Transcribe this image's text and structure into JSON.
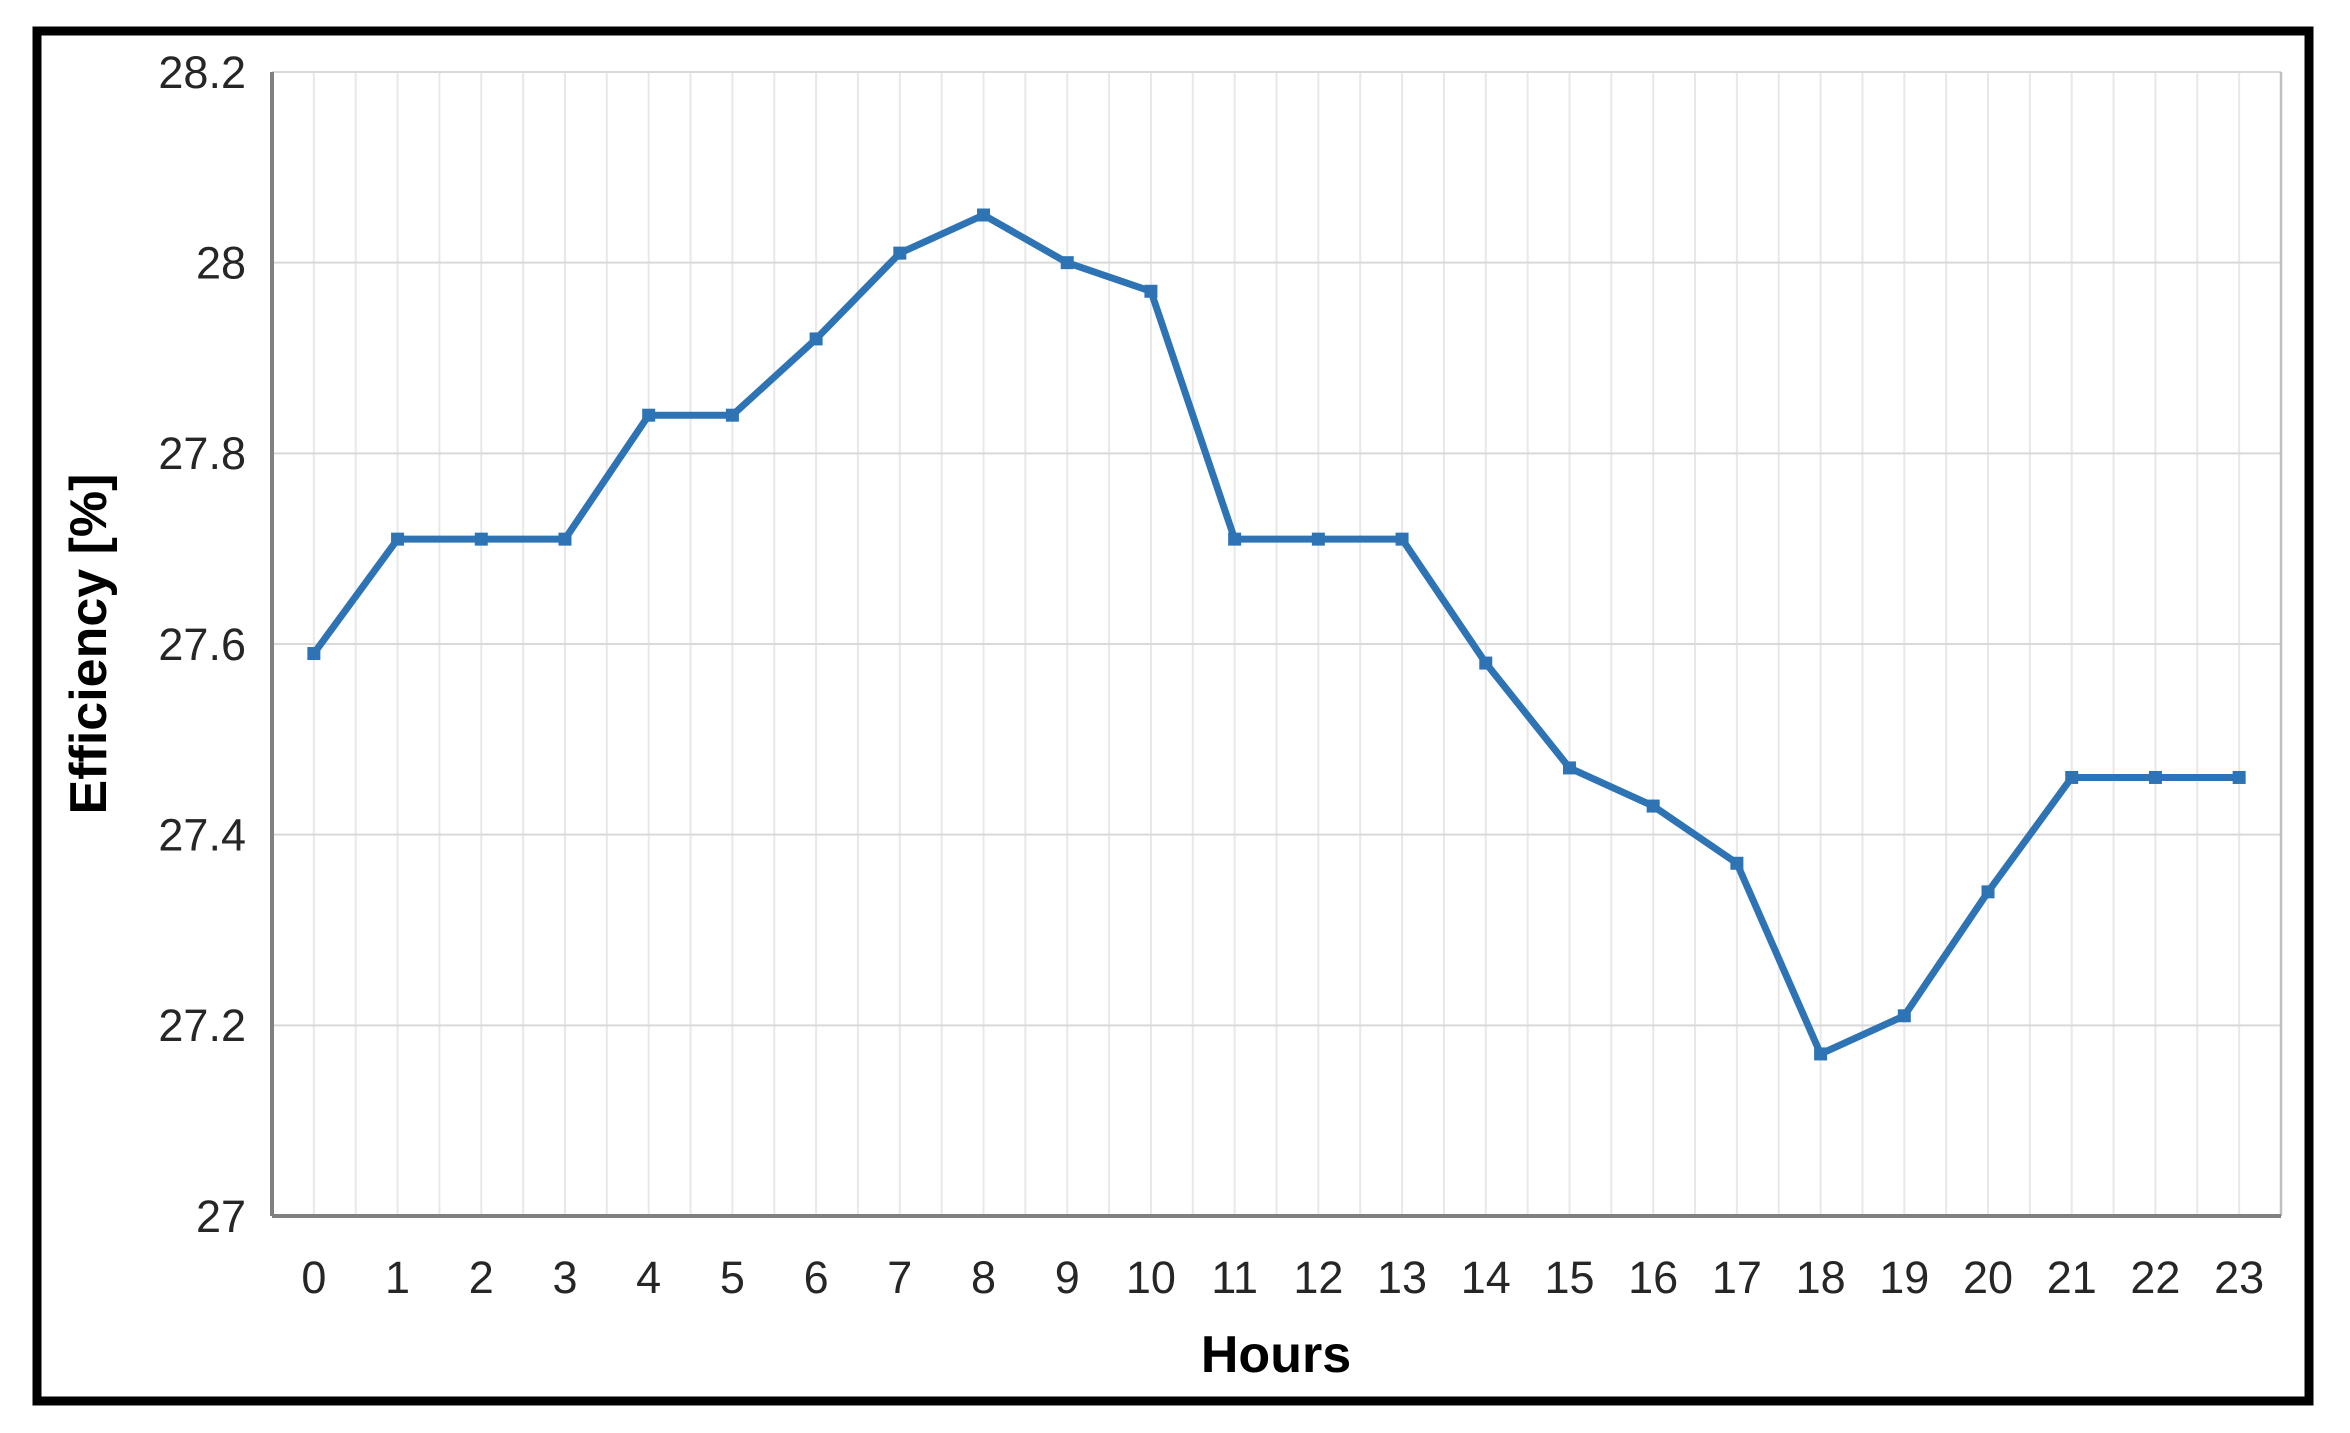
{
  "figure": {
    "background_color": "#ffffff",
    "outer_border_color": "#000000"
  },
  "chart_data": {
    "type": "line",
    "x": [
      0,
      1,
      2,
      3,
      4,
      5,
      6,
      7,
      8,
      9,
      10,
      11,
      12,
      13,
      14,
      15,
      16,
      17,
      18,
      19,
      20,
      21,
      22,
      23
    ],
    "xtick_labels": [
      "0",
      "1",
      "2",
      "3",
      "4",
      "5",
      "6",
      "7",
      "8",
      "9",
      "10",
      "11",
      "12",
      "13",
      "14",
      "15",
      "16",
      "17",
      "18",
      "19",
      "20",
      "21",
      "22",
      "23"
    ],
    "series": [
      {
        "name": "Efficiency",
        "values": [
          27.59,
          27.71,
          27.71,
          27.71,
          27.84,
          27.84,
          27.92,
          28.01,
          28.05,
          28.0,
          27.97,
          27.71,
          27.71,
          27.71,
          27.58,
          27.47,
          27.43,
          27.37,
          27.17,
          27.21,
          27.34,
          27.46,
          27.46,
          27.46
        ]
      }
    ],
    "title": "",
    "xlabel": "Hours",
    "ylabel": "Efficiency [%]",
    "ylim": [
      27,
      28.2
    ],
    "ytick_step": 0.2,
    "ytick_labels": [
      "27",
      "27.2",
      "27.4",
      "27.6",
      "27.8",
      "28",
      "28.2"
    ],
    "grid": "horizontal major lines + light vertical lines every half category",
    "legend_position": "none",
    "line_color": "#2E74B5",
    "marker": "square",
    "marker_color": "#2E74B5",
    "major_gridline_color": "#D9D9D9",
    "minor_gridline_color": "#E8E8E8",
    "axis_line_color": "#808080",
    "plot_right_border_color": "#BFBFBF",
    "tick_text_color": "#262626"
  }
}
